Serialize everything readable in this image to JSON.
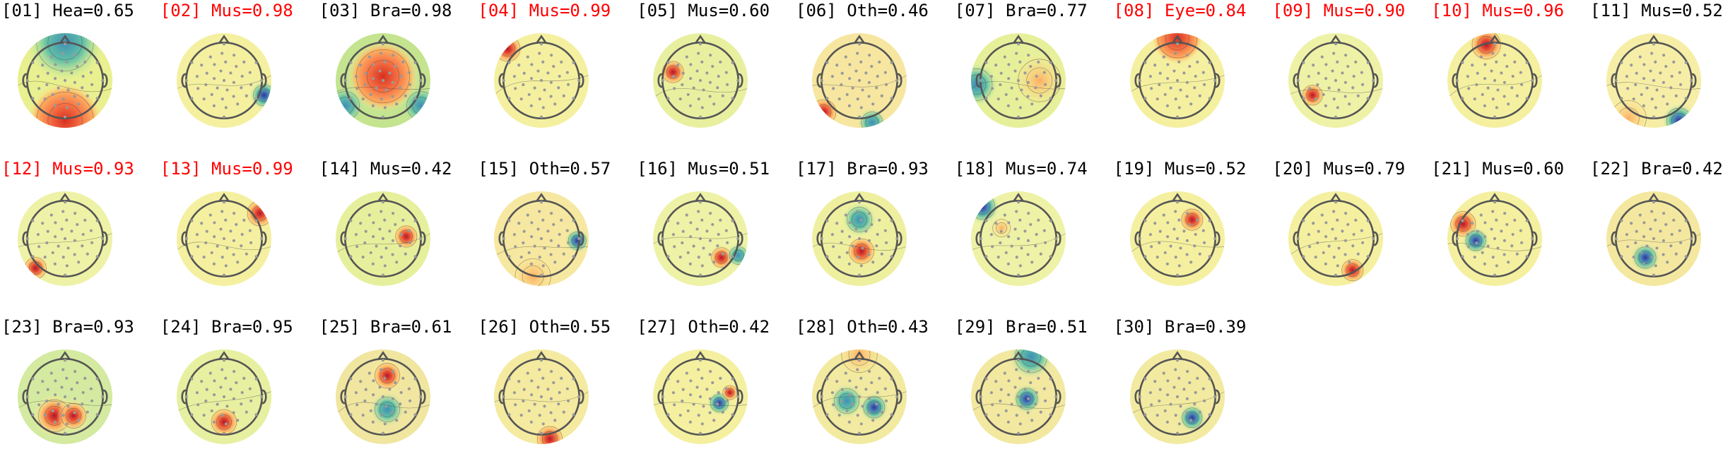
{
  "figure": {
    "colors": {
      "flagged_label": "#ff0000",
      "normal_label": "#000000",
      "outline": "#555555",
      "sensor": "#999999"
    },
    "components": [
      {
        "label": "[01] Hea=0.65",
        "flagged": false,
        "pattern": "frontal-cool-occipital-warm"
      },
      {
        "label": "[02] Mus=0.98",
        "flagged": true,
        "pattern": "right-temporal-cool"
      },
      {
        "label": "[03] Bra=0.98",
        "flagged": false,
        "pattern": "central-warm-wide"
      },
      {
        "label": "[04] Mus=0.99",
        "flagged": true,
        "pattern": "left-frontal-edge-warm"
      },
      {
        "label": "[05] Mus=0.60",
        "flagged": false,
        "pattern": "left-frontal-warm"
      },
      {
        "label": "[06] Oth=0.46",
        "flagged": false,
        "pattern": "left-occipital-warm"
      },
      {
        "label": "[07] Bra=0.77",
        "flagged": false,
        "pattern": "left-right-gradient"
      },
      {
        "label": "[08] Eye=0.84",
        "flagged": true,
        "pattern": "frontal-warm"
      },
      {
        "label": "[09] Mus=0.90",
        "flagged": true,
        "pattern": "left-posterior-warm"
      },
      {
        "label": "[10] Mus=0.96",
        "flagged": true,
        "pattern": "frontal-warm-focal"
      },
      {
        "label": "[11] Mus=0.52",
        "flagged": false,
        "pattern": "right-occipital-cool"
      },
      {
        "label": "[12] Mus=0.93",
        "flagged": true,
        "pattern": "left-occipital-warm-focal"
      },
      {
        "label": "[13] Mus=0.99",
        "flagged": true,
        "pattern": "right-frontal-edge-warm"
      },
      {
        "label": "[14] Mus=0.42",
        "flagged": false,
        "pattern": "right-central-warm"
      },
      {
        "label": "[15] Oth=0.57",
        "flagged": false,
        "pattern": "right-temporal-cool-focal"
      },
      {
        "label": "[16] Mus=0.51",
        "flagged": false,
        "pattern": "right-posterior-warm"
      },
      {
        "label": "[17] Bra=0.93",
        "flagged": false,
        "pattern": "midline-warm"
      },
      {
        "label": "[18] Mus=0.74",
        "flagged": false,
        "pattern": "left-frontal-cool"
      },
      {
        "label": "[19] Mus=0.52",
        "flagged": false,
        "pattern": "right-frontal-warm-focal"
      },
      {
        "label": "[20] Mus=0.79",
        "flagged": false,
        "pattern": "right-occipital-warm"
      },
      {
        "label": "[21] Mus=0.60",
        "flagged": false,
        "pattern": "left-warm-cool-dipole"
      },
      {
        "label": "[22] Bra=0.42",
        "flagged": false,
        "pattern": "left-posterior-cool"
      },
      {
        "label": "[23] Bra=0.93",
        "flagged": false,
        "pattern": "bilateral-posterior-warm"
      },
      {
        "label": "[24] Bra=0.95",
        "flagged": false,
        "pattern": "posterior-midline-warm"
      },
      {
        "label": "[25] Bra=0.61",
        "flagged": false,
        "pattern": "frontal-warm-posterior-cool"
      },
      {
        "label": "[26] Oth=0.55",
        "flagged": false,
        "pattern": "occipital-warm-edge"
      },
      {
        "label": "[27] Oth=0.42",
        "flagged": false,
        "pattern": "right-cool-dipole"
      },
      {
        "label": "[28] Oth=0.43",
        "flagged": false,
        "pattern": "central-cool-rim-warm"
      },
      {
        "label": "[29] Bra=0.51",
        "flagged": false,
        "pattern": "central-cool-frontal-cool"
      },
      {
        "label": "[30] Bra=0.39",
        "flagged": false,
        "pattern": "right-posterior-cool"
      }
    ]
  }
}
